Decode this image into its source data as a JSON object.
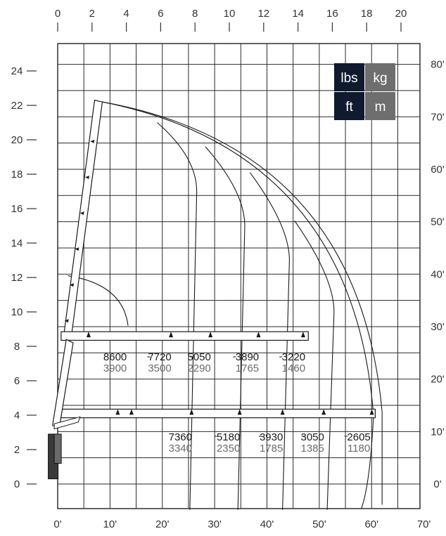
{
  "chart_data": {
    "type": "load-chart",
    "x_m_ticks": [
      "0",
      "2",
      "4",
      "6",
      "8",
      "10",
      "12",
      "14",
      "16",
      "18",
      "20"
    ],
    "y_m_ticks": [
      "24",
      "22",
      "20",
      "18",
      "16",
      "14",
      "12",
      "10",
      "8",
      "6",
      "4",
      "2",
      "0"
    ],
    "x_ft_ticks": [
      "0'",
      "10'",
      "20'",
      "30'",
      "40'",
      "50'",
      "60'",
      "70'"
    ],
    "y_ft_ticks": [
      "80'",
      "70'",
      "60'",
      "50'",
      "40'",
      "30'",
      "20'",
      "10'",
      "0'"
    ],
    "unit_toggle": {
      "lbs": "lbs",
      "kg": "kg",
      "ft": "ft",
      "m": "m",
      "dark_color": "#0f1a2e",
      "grey_color": "#6e6e6e"
    },
    "upper_boom": {
      "height_m": 8.5,
      "capacities": [
        {
          "lbs": "8600",
          "kg": "3900",
          "reach_m": 4.0
        },
        {
          "lbs": "7720",
          "kg": "3500",
          "reach_m": 6.6
        },
        {
          "lbs": "5050",
          "kg": "2290",
          "reach_m": 8.9
        },
        {
          "lbs": "3890",
          "kg": "1765",
          "reach_m": 11.7
        },
        {
          "lbs": "3220",
          "kg": "1460",
          "reach_m": 14.4
        }
      ]
    },
    "lower_boom": {
      "height_m": 4.0,
      "capacities": [
        {
          "lbs": "7360",
          "kg": "3340",
          "reach_m": 7.8
        },
        {
          "lbs": "5180",
          "kg": "2350",
          "reach_m": 10.6
        },
        {
          "lbs": "3930",
          "kg": "1785",
          "reach_m": 13.1
        },
        {
          "lbs": "3050",
          "kg": "1385",
          "reach_m": 15.5
        },
        {
          "lbs": "2605",
          "kg": "1180",
          "reach_m": 18.2
        }
      ]
    },
    "max_height_m": 22.2,
    "max_reach_m": 18.8
  }
}
